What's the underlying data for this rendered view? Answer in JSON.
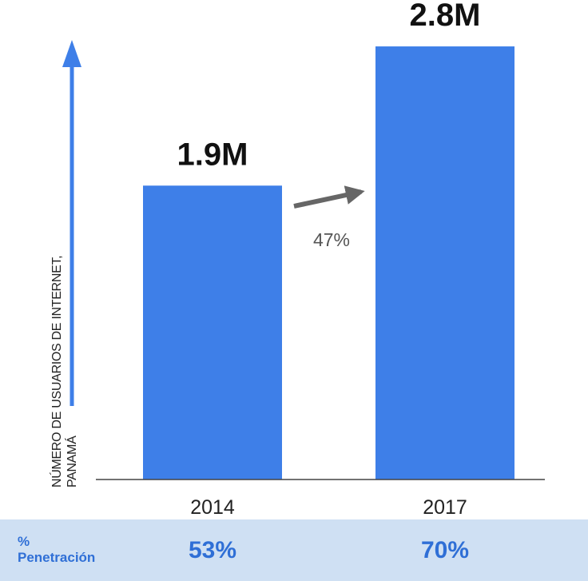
{
  "chart_data": {
    "type": "bar",
    "categories": [
      "2014",
      "2017"
    ],
    "values": [
      1.9,
      2.8
    ],
    "value_labels": [
      "1.9M",
      "2.8M"
    ],
    "ylabel": [
      "NÚMERO DE USUARIOS DE INTERNET,",
      "PANAMÁ"
    ],
    "growth_label": "47%",
    "ylim": [
      0,
      3.1
    ],
    "colors": {
      "bar": "#3e7fe8",
      "axis_arrow": "#3e7fe8",
      "growth_arrow": "#666666"
    }
  },
  "penetration": {
    "label_line1": "%",
    "label_line2": "Penetración",
    "values": [
      "53%",
      "70%"
    ]
  }
}
